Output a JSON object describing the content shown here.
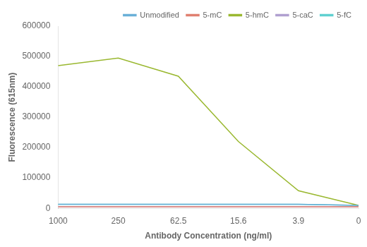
{
  "chart_data": {
    "type": "line",
    "categories": [
      "1000",
      "250",
      "62.5",
      "15.6",
      "3.9",
      "0"
    ],
    "series": [
      {
        "name": "Unmodified",
        "color": "#6ab0d8",
        "values": [
          13000,
          13000,
          13000,
          13000,
          13000,
          10000
        ]
      },
      {
        "name": "5-mC",
        "color": "#e08070",
        "values": [
          5000,
          5000,
          5000,
          5000,
          5000,
          5000
        ]
      },
      {
        "name": "5-hmC",
        "color": "#9ab830",
        "values": [
          470000,
          495000,
          435000,
          220000,
          58000,
          10000
        ]
      },
      {
        "name": "5-caC",
        "color": "#b0a0d0",
        "values": [
          5000,
          5000,
          5000,
          5000,
          5000,
          5000
        ]
      },
      {
        "name": "5-fC",
        "color": "#60d0d0",
        "values": [
          13000,
          13000,
          13000,
          13000,
          13000,
          10000
        ]
      }
    ],
    "xlabel": "Antibody Concentration (ng/ml)",
    "ylabel": "Fluorescence (615nm)",
    "ylim": [
      0,
      600000
    ],
    "yticks": [
      0,
      100000,
      200000,
      300000,
      400000,
      500000,
      600000
    ],
    "grid": false,
    "legend": "upper right"
  }
}
